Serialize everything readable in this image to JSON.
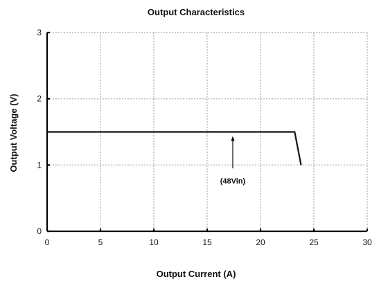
{
  "chart_data": {
    "type": "line",
    "title": "Output Characteristics",
    "xlabel": "Output Current (A)",
    "ylabel": "Output Voltage (V)",
    "xlim": [
      0,
      30
    ],
    "ylim": [
      0,
      3
    ],
    "xticks": [
      0,
      5,
      10,
      15,
      20,
      25,
      30
    ],
    "yticks": [
      0,
      1,
      2,
      3
    ],
    "grid": true,
    "series": [
      {
        "name": "",
        "x": [
          0,
          23.2,
          23.8
        ],
        "y": [
          1.5,
          1.5,
          1.0
        ]
      }
    ],
    "annotations": [
      {
        "text": "(48Vin)",
        "arrow_to": {
          "x": 17.4,
          "y": 1.5
        },
        "arrow_from": {
          "x": 17.4,
          "y": 0.95
        }
      }
    ]
  }
}
